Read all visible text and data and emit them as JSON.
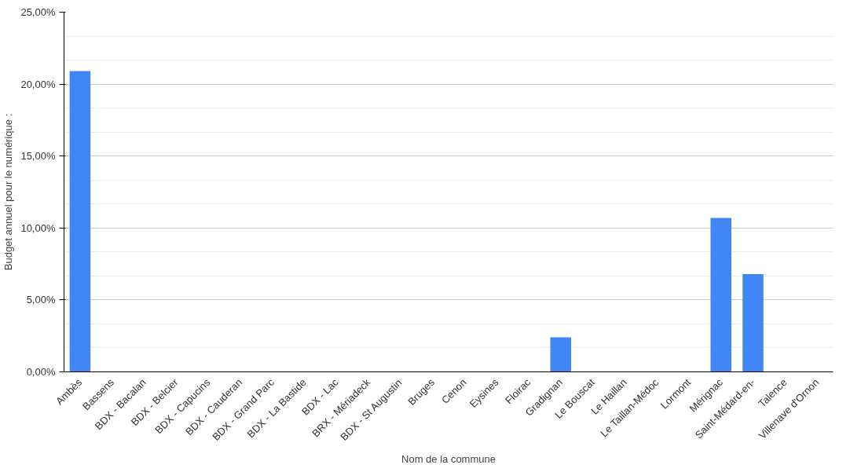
{
  "chart_data": {
    "type": "bar",
    "xlabel": "Nom de la commune",
    "ylabel": "Budget annuel pour le numérique :",
    "categories": [
      "Ambès",
      "Bassens",
      "BDX - Bacalan",
      "BDX - Belcier",
      "BDX - Capucins",
      "BDX - Cauderan",
      "BDX - Grand Parc",
      "BDX - La Bastide",
      "BDX - Lac",
      "BRX - Mériadeck",
      "BDX - St Augustin",
      "Bruges",
      "Cenon",
      "Eysines",
      "Floirac",
      "Gradignan",
      "Le Bouscat",
      "Le Haillan",
      "Le Taillan-Médoc",
      "Lormont",
      "Mérignac",
      "Saint-Médard-en-",
      "Talence",
      "Villenave d'Ornon"
    ],
    "values": [
      20.9,
      0,
      0,
      0,
      0,
      0,
      0,
      0,
      0,
      0,
      0,
      0,
      0,
      0,
      0,
      2.4,
      0,
      0,
      0,
      0,
      10.7,
      6.8,
      0,
      0
    ],
    "color": "#4285f4",
    "ylim": [
      0,
      25
    ],
    "yticks": [
      {
        "value": 0,
        "label": "0,00%"
      },
      {
        "value": 5,
        "label": "5,00%"
      },
      {
        "value": 10,
        "label": "10,00%"
      },
      {
        "value": 15,
        "label": "15,00%"
      },
      {
        "value": 20,
        "label": "20,00%"
      },
      {
        "value": 25,
        "label": "25,00%"
      }
    ],
    "grid": "y"
  }
}
